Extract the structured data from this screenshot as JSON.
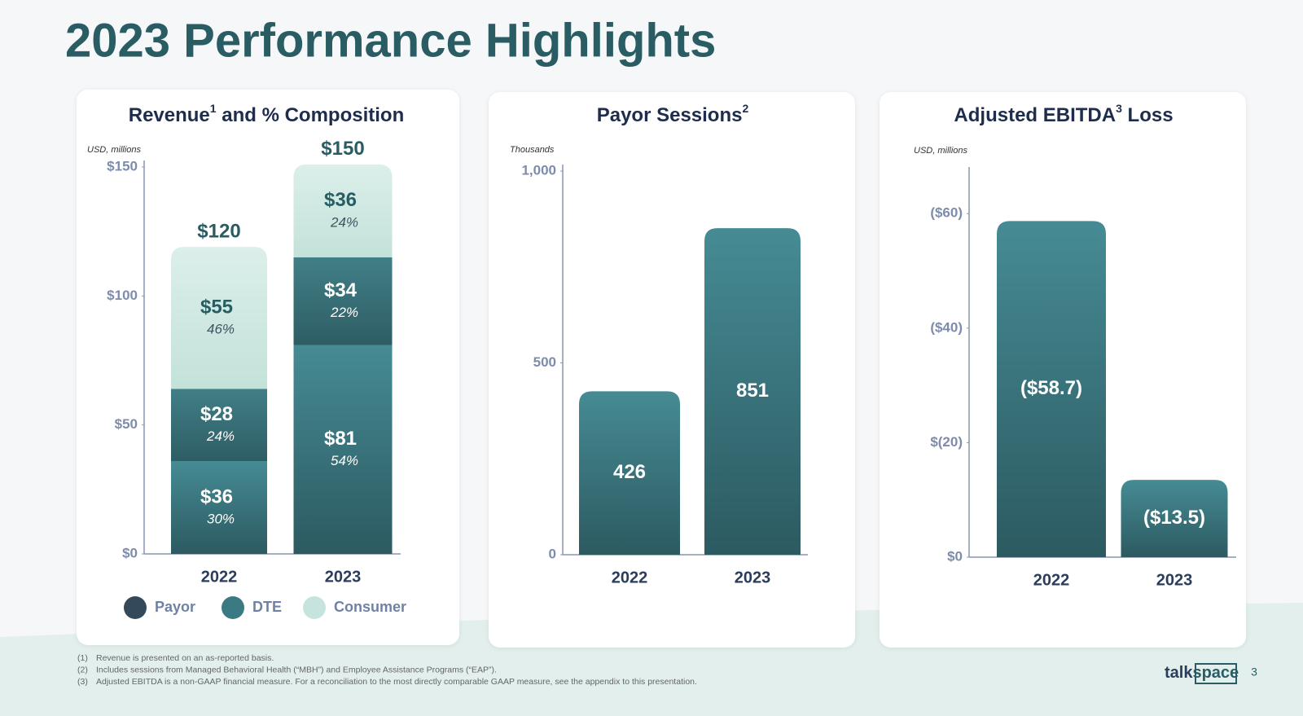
{
  "title": "2023 Performance Highlights",
  "chart_data": [
    {
      "type": "stacked_bar",
      "title": "Revenue",
      "title_note": "1",
      "title_rest": " and % Composition",
      "unit_label": "USD, millions",
      "categories": [
        "2022",
        "2023"
      ],
      "series": [
        {
          "name": "Payor",
          "color": "#34495a",
          "values": [
            36,
            81
          ],
          "value_labels": [
            "$36",
            "$81"
          ],
          "share_labels": [
            "30%",
            "54%"
          ]
        },
        {
          "name": "DTE",
          "color": "#3b7a82",
          "values": [
            28,
            34
          ],
          "value_labels": [
            "$28",
            "$34"
          ],
          "share_labels": [
            "24%",
            "22%"
          ]
        },
        {
          "name": "Consumer",
          "color": "#c6e4dd",
          "values": [
            55,
            36
          ],
          "value_labels": [
            "$55",
            "$36"
          ],
          "share_labels": [
            "46%",
            "24%"
          ]
        }
      ],
      "totals": [
        120,
        150
      ],
      "total_labels": [
        "$120",
        "$150"
      ],
      "ylim": [
        0,
        150
      ],
      "yticks": [
        {
          "value": 0,
          "label": "$0"
        },
        {
          "value": 50,
          "label": "$50"
        },
        {
          "value": 100,
          "label": "$100"
        },
        {
          "value": 150,
          "label": "$150"
        }
      ],
      "legend": "bottom"
    },
    {
      "type": "bar",
      "title": "Payor Sessions",
      "title_note": "2",
      "unit_label": "Thousands",
      "categories": [
        "2022",
        "2023"
      ],
      "values": [
        426,
        851
      ],
      "color": "#3a7a82",
      "ylim": [
        0,
        1000
      ],
      "yticks": [
        0,
        500,
        {
          "value": 1000,
          "label": "1,000"
        }
      ]
    },
    {
      "type": "bar",
      "title": "Adjusted EBITDA",
      "title_note": "3",
      "title_rest": " Loss",
      "unit_label": "USD, millions",
      "categories": [
        "2022",
        "2023"
      ],
      "values": [
        -58.7,
        -13.5
      ],
      "value_labels": [
        "($58.7)",
        "($13.5)"
      ],
      "color": "#3a7a82",
      "ylim": [
        0,
        -67
      ],
      "yticks": [
        {
          "value": 0,
          "label": "$0"
        },
        {
          "value": -20,
          "label": "$(20)"
        },
        {
          "value": -40,
          "label": "($40)"
        },
        {
          "value": -60,
          "label": "($60)"
        }
      ]
    }
  ],
  "footnotes": [
    {
      "marker": "(1)",
      "text": "Revenue is presented on an as-reported basis."
    },
    {
      "marker": "(2)",
      "text": "Includes sessions from Managed Behavioral Health (“MBH”) and Employee Assistance Programs (“EAP”)."
    },
    {
      "marker": "(3)",
      "text": "Adjusted EBITDA is a non-GAAP financial measure. For a reconciliation to the most directly comparable GAAP measure, see the appendix to this presentation."
    }
  ],
  "logo": {
    "left": "talk",
    "right": "space"
  },
  "page_number": "3"
}
